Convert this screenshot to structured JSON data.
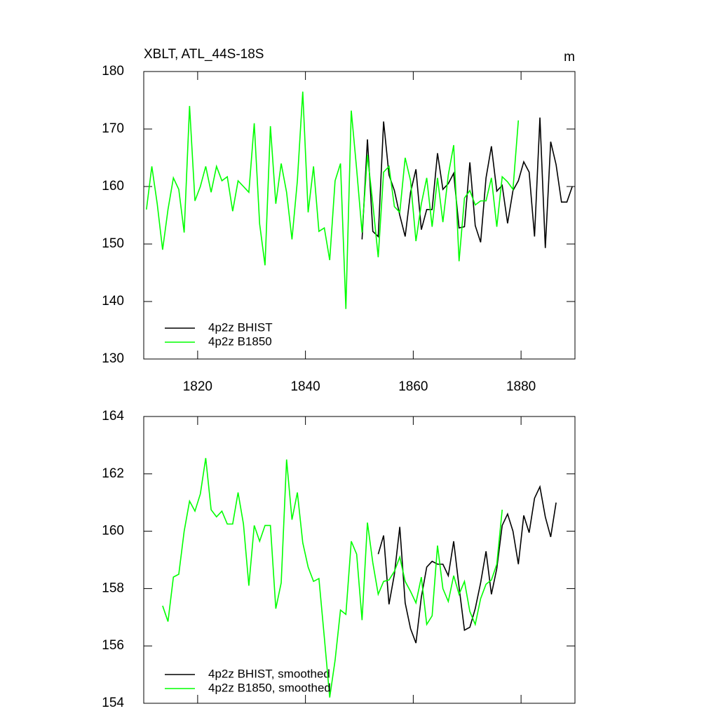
{
  "chart_data": [
    {
      "type": "line",
      "title": "XBLT, ATL_44S-18S",
      "units": "m",
      "xlim": [
        1810,
        1890
      ],
      "xticks": [
        1820,
        1840,
        1860,
        1880
      ],
      "ylim": [
        130,
        180
      ],
      "yticks": [
        130,
        140,
        150,
        160,
        170,
        180
      ],
      "series": [
        {
          "name": "4p2z BHIST",
          "color": "#000000",
          "x": [
            1850.5,
            1851.5,
            1852.5,
            1853.5,
            1854.5,
            1855.5,
            1856.5,
            1857.5,
            1858.5,
            1859.5,
            1860.5,
            1861.5,
            1862.5,
            1863.5,
            1864.5,
            1865.5,
            1866.5,
            1867.5,
            1868.5,
            1869.5,
            1870.5,
            1871.5,
            1872.5,
            1873.5,
            1874.5,
            1875.5,
            1876.5,
            1877.5,
            1878.5,
            1879.5,
            1880.5,
            1881.5,
            1882.5,
            1883.5,
            1884.5,
            1885.5,
            1886.5,
            1887.5,
            1888.5,
            1889.5
          ],
          "values": [
            150.8,
            168.2,
            152.2,
            151.3,
            171.3,
            162,
            159.3,
            155,
            151.3,
            159,
            163,
            152.5,
            156,
            156,
            165.8,
            159.5,
            160.5,
            162.3,
            152.8,
            153,
            164.2,
            153.2,
            150.3,
            161.5,
            167,
            159.2,
            160.2,
            153.6,
            159.3,
            161,
            164.3,
            162.5,
            151.3,
            172,
            149.3,
            167.8,
            163.8,
            157.3,
            157.3,
            160
          ]
        },
        {
          "name": "4p2z B1850",
          "color": "#00ff00",
          "x": [
            1810.5,
            1811.5,
            1812.5,
            1813.5,
            1814.5,
            1815.5,
            1816.5,
            1817.5,
            1818.5,
            1819.5,
            1820.5,
            1821.5,
            1822.5,
            1823.5,
            1824.5,
            1825.5,
            1826.5,
            1827.5,
            1828.5,
            1829.5,
            1830.5,
            1831.5,
            1832.5,
            1833.5,
            1834.5,
            1835.5,
            1836.5,
            1837.5,
            1838.5,
            1839.5,
            1840.5,
            1841.5,
            1842.5,
            1843.5,
            1844.5,
            1845.5,
            1846.5,
            1847.5,
            1848.5,
            1849.5,
            1850.5,
            1851.5,
            1852.5,
            1853.5,
            1854.5,
            1855.5,
            1856.5,
            1857.5,
            1858.5,
            1859.5,
            1860.5,
            1861.5,
            1862.5,
            1863.5,
            1864.5,
            1865.5,
            1866.5,
            1867.5,
            1868.5,
            1869.5,
            1870.5,
            1871.5,
            1872.5,
            1873.5,
            1874.5,
            1875.5,
            1876.5,
            1877.5,
            1878.5,
            1879.5
          ],
          "values": [
            156,
            163.5,
            157,
            149,
            156,
            161.5,
            159.5,
            152,
            174,
            157.5,
            160,
            163.5,
            159,
            163.5,
            161,
            161.7,
            155.7,
            161,
            160,
            159,
            171,
            153.5,
            146.3,
            170.5,
            157,
            164,
            159,
            150.8,
            161,
            176.5,
            155.5,
            163.5,
            152.2,
            152.8,
            147.2,
            161,
            164,
            138.7,
            173.2,
            163,
            152,
            165.5,
            157,
            147.7,
            162.5,
            163.5,
            156.5,
            155.5,
            165,
            161,
            150.5,
            157,
            161.5,
            153,
            161.5,
            153.8,
            162,
            167.2,
            147,
            158,
            159.3,
            156.8,
            157.5,
            157.5,
            161.5,
            153,
            161.7,
            160.8,
            159.5,
            171.5
          ]
        }
      ]
    },
    {
      "type": "line",
      "xlim": [
        1810,
        1890
      ],
      "xticks": [
        1820,
        1840,
        1860,
        1880
      ],
      "xtick_labels": false,
      "ylim": [
        154,
        164
      ],
      "yticks": [
        154,
        156,
        158,
        160,
        162,
        164
      ],
      "series": [
        {
          "name": "4p2z BHIST, smoothed",
          "color": "#000000",
          "x": [
            1853.5,
            1854.5,
            1855.5,
            1856.5,
            1857.5,
            1858.5,
            1859.5,
            1860.5,
            1861.5,
            1862.5,
            1863.5,
            1864.5,
            1865.5,
            1866.5,
            1867.5,
            1868.5,
            1869.5,
            1870.5,
            1871.5,
            1872.5,
            1873.5,
            1874.5,
            1875.5,
            1876.5,
            1877.5,
            1878.5,
            1879.5,
            1880.5,
            1881.5,
            1882.5,
            1883.5,
            1884.5,
            1885.5,
            1886.5
          ],
          "values": [
            159.2,
            159.85,
            157.45,
            158.5,
            160.15,
            157.5,
            156.6,
            156.1,
            157.7,
            158.75,
            158.95,
            158.85,
            158.85,
            158.45,
            159.65,
            158.05,
            156.55,
            156.65,
            157.3,
            158.2,
            159.3,
            157.8,
            158.7,
            160.2,
            160.6,
            160,
            158.85,
            160.55,
            159.95,
            161.15,
            161.55,
            160.5,
            159.8,
            161
          ]
        },
        {
          "name": "4p2z B1850, smoothed",
          "color": "#00ff00",
          "x": [
            1813.5,
            1814.5,
            1815.5,
            1816.5,
            1817.5,
            1818.5,
            1819.5,
            1820.5,
            1821.5,
            1822.5,
            1823.5,
            1824.5,
            1825.5,
            1826.5,
            1827.5,
            1828.5,
            1829.5,
            1830.5,
            1831.5,
            1832.5,
            1833.5,
            1834.5,
            1835.5,
            1836.5,
            1837.5,
            1838.5,
            1839.5,
            1840.5,
            1841.5,
            1842.5,
            1843.5,
            1844.5,
            1845.5,
            1846.5,
            1847.5,
            1848.5,
            1849.5,
            1850.5,
            1851.5,
            1852.5,
            1853.5,
            1854.5,
            1855.5,
            1856.5,
            1857.5,
            1858.5,
            1859.5,
            1860.5,
            1861.5,
            1862.5,
            1863.5,
            1864.5,
            1865.5,
            1866.5,
            1867.5,
            1868.5,
            1869.5,
            1870.5,
            1871.5,
            1872.5,
            1873.5,
            1874.5,
            1875.5,
            1876.5
          ],
          "values": [
            157.4,
            156.85,
            158.4,
            158.5,
            160,
            161.05,
            160.7,
            161.3,
            162.55,
            160.75,
            160.5,
            160.7,
            160.25,
            160.25,
            161.35,
            160.25,
            158.1,
            160.2,
            159.65,
            160.2,
            160.2,
            157.3,
            158.2,
            162.5,
            160.4,
            161.35,
            159.6,
            158.75,
            158.25,
            158.35,
            156.3,
            154.2,
            155.5,
            157.25,
            157.1,
            159.65,
            159.2,
            156.9,
            160.3,
            158.9,
            157.8,
            158.25,
            158.3,
            158.6,
            159.1,
            158.25,
            157.9,
            157.5,
            158.4,
            156.75,
            157.05,
            159.5,
            158,
            157.55,
            158.45,
            157.8,
            158.25,
            157.2,
            156.75,
            157.65,
            158.15,
            158.3,
            158.85,
            160.75
          ]
        }
      ]
    }
  ]
}
